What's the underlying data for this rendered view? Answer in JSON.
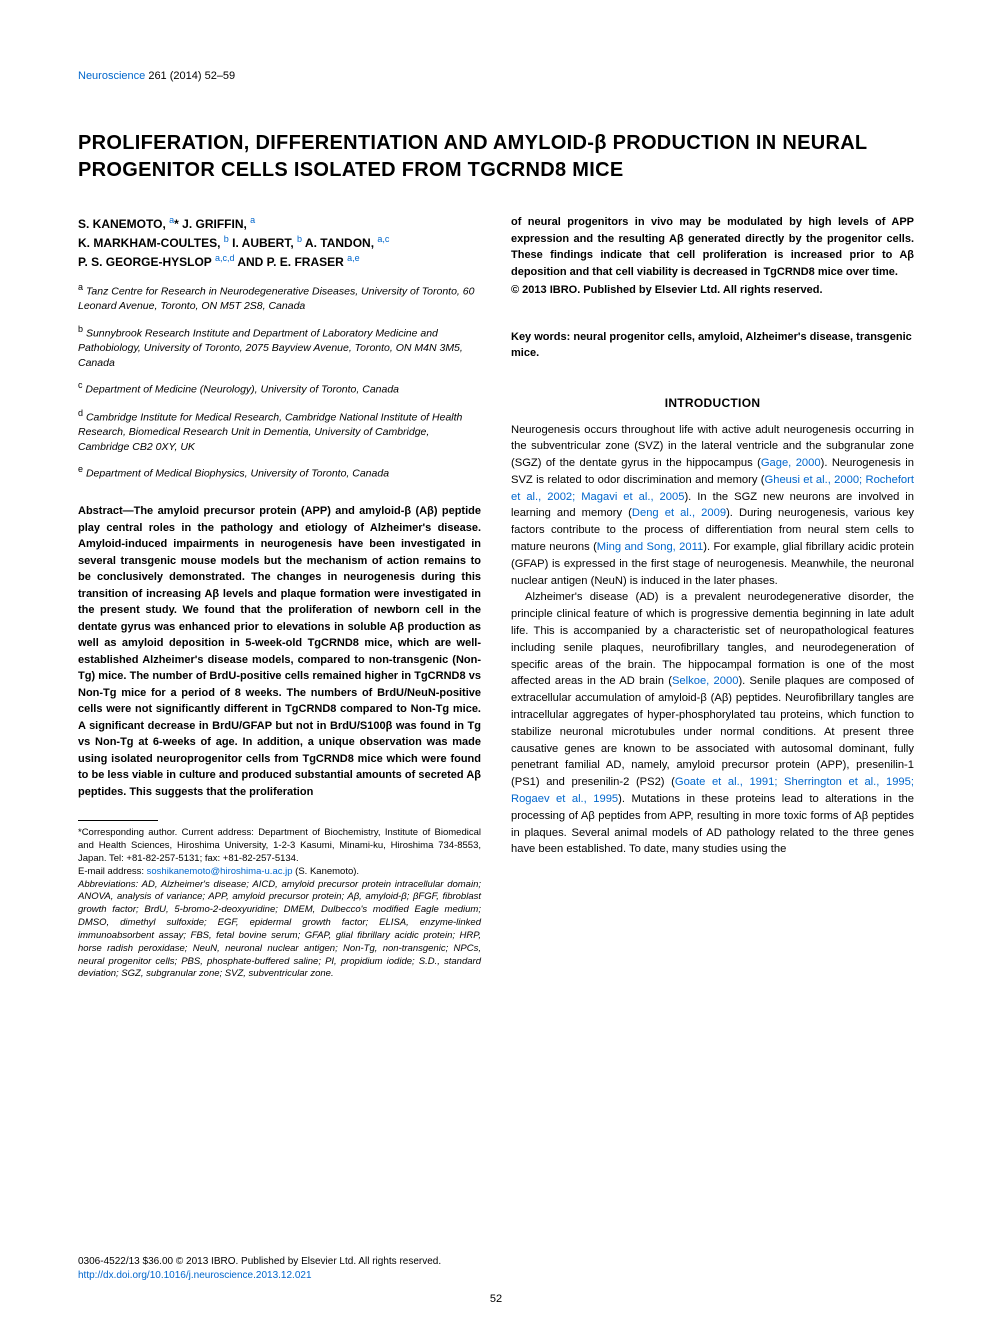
{
  "journal": {
    "name_link": "Neuroscience",
    "issue": " 261 (2014) 52–59"
  },
  "title": "PROLIFERATION, DIFFERENTIATION AND AMYLOID-β PRODUCTION IN NEURAL PROGENITOR CELLS ISOLATED FROM TGCRND8 MICE",
  "authors": {
    "line1_a": "S. KANEMOTO, ",
    "line1_aff1": "a",
    "line1_star": "*",
    "line1_b": " J. GRIFFIN, ",
    "line1_aff2": "a",
    "line2_a": "K. MARKHAM-COULTES, ",
    "line2_aff1": "b",
    "line2_b": " I. AUBERT, ",
    "line2_aff2": "b",
    "line2_c": " A. TANDON, ",
    "line2_aff3": "a,c",
    "line3_a": "P. S. GEORGE-HYSLOP ",
    "line3_aff1": "a,c,d",
    "line3_b": " AND P. E. FRASER ",
    "line3_aff2": "a,e"
  },
  "affiliations": {
    "a": "Tanz Centre for Research in Neurodegenerative Diseases, University of Toronto, 60 Leonard Avenue, Toronto, ON M5T 2S8, Canada",
    "b": "Sunnybrook Research Institute and Department of Laboratory Medicine and Pathobiology, University of Toronto, 2075 Bayview Avenue, Toronto, ON M4N 3M5, Canada",
    "c": "Department of Medicine (Neurology), University of Toronto, Canada",
    "d": "Cambridge Institute for Medical Research, Cambridge National Institute of Health Research, Biomedical Research Unit in Dementia, University of Cambridge, Cambridge CB2 0XY, UK",
    "e": "Department of Medical Biophysics, University of Toronto, Canada"
  },
  "abstract_left": "Abstract—The amyloid precursor protein (APP) and amyloid-β (Aβ) peptide play central roles in the pathology and etiology of Alzheimer's disease. Amyloid-induced impairments in neurogenesis have been investigated in several transgenic mouse models but the mechanism of action remains to be conclusively demonstrated. The changes in neurogenesis during this transition of increasing Aβ levels and plaque formation were investigated in the present study. We found that the proliferation of newborn cell in the dentate gyrus was enhanced prior to elevations in soluble Aβ production as well as amyloid deposition in 5-week-old TgCRND8 mice, which are well-established Alzheimer's disease models, compared to non-transgenic (Non-Tg) mice. The number of BrdU-positive cells remained higher in TgCRND8 vs Non-Tg mice for a period of 8 weeks. The numbers of BrdU/NeuN-positive cells were not significantly different in TgCRND8 compared to Non-Tg mice. A significant decrease in BrdU/GFAP but not in BrdU/S100β was found in Tg vs Non-Tg at 6-weeks of age. In addition, a unique observation was made using isolated neuroprogenitor cells from TgCRND8 mice which were found to be less viable in culture and produced substantial amounts of secreted Aβ peptides. This suggests that the proliferation",
  "abstract_right": "of neural progenitors in vivo may be modulated by high levels of APP expression and the resulting Aβ generated directly by the progenitor cells. These findings indicate that cell proliferation is increased prior to Aβ deposition and that cell viability is decreased in TgCRND8 mice over time.",
  "copyright_line": "© 2013 IBRO. Published by Elsevier Ltd. All rights reserved.",
  "keywords": "Key words: neural progenitor cells, amyloid, Alzheimer's disease, transgenic mice.",
  "intro_heading": "INTRODUCTION",
  "intro_p1_a": "Neurogenesis occurs throughout life with active adult neurogenesis occurring in the subventricular zone (SVZ) in the lateral ventricle and the subgranular zone (SGZ) of the dentate gyrus in the hippocampus (",
  "intro_p1_link1": "Gage, 2000",
  "intro_p1_b": "). Neurogenesis in SVZ is related to odor discrimination and memory (",
  "intro_p1_link2": "Gheusi et al., 2000; Rochefort et al., 2002; Magavi et al., 2005",
  "intro_p1_c": "). In the SGZ new neurons are involved in learning and memory (",
  "intro_p1_link3": "Deng et al., 2009",
  "intro_p1_d": "). During neurogenesis, various key factors contribute to the process of differentiation from neural stem cells to mature neurons (",
  "intro_p1_link4": "Ming and Song, 2011",
  "intro_p1_e": "). For example, glial fibrillary acidic protein (GFAP) is expressed in the first stage of neurogenesis. Meanwhile, the neuronal nuclear antigen (NeuN) is induced in the later phases.",
  "intro_p2_a": "Alzheimer's disease (AD) is a prevalent neurodegenerative disorder, the principle clinical feature of which is progressive dementia beginning in late adult life. This is accompanied by a characteristic set of neuropathological features including senile plaques, neurofibrillary tangles, and neurodegeneration of specific areas of the brain. The hippocampal formation is one of the most affected areas in the AD brain (",
  "intro_p2_link1": "Selkoe, 2000",
  "intro_p2_b": "). Senile plaques are composed of extracellular accumulation of amyloid-β (Aβ) peptides. Neurofibrillary tangles are intracellular aggregates of hyper-phosphorylated tau proteins, which function to stabilize neuronal microtubules under normal conditions. At present three causative genes are known to be associated with autosomal dominant, fully penetrant familial AD, namely, amyloid precursor protein (APP), presenilin-1 (PS1) and presenilin-2 (PS2) (",
  "intro_p2_link2": "Goate et al., 1991; Sherrington et al., 1995; Rogaev et al., 1995",
  "intro_p2_c": "). Mutations in these proteins lead to alterations in the processing of Aβ peptides from APP, resulting in more toxic forms of Aβ peptides in plaques. Several animal models of AD pathology related to the three genes have been established. To date, many studies using the",
  "footnotes": {
    "corr_a": "*Corresponding author. Current address: Department of Biochemistry, Institute of Biomedical and Health Sciences, Hiroshima University, 1-2-3 Kasumi, Minami-ku, Hiroshima 734-8553, Japan. Tel: +81-82-257-5131; fax: +81-82-257-5134.",
    "email_label": "E-mail address: ",
    "email_addr": "soshikanemoto@hiroshima-u.ac.jp",
    "email_after": " (S. Kanemoto).",
    "abbrev": "Abbreviations: AD, Alzheimer's disease; AICD, amyloid precursor protein intracellular domain; ANOVA, analysis of variance; APP, amyloid precursor protein; Aβ, amyloid-β; βFGF, fibroblast growth factor; BrdU, 5-bromo-2-deoxyuridine; DMEM, Dulbecco's modified Eagle medium; DMSO, dimethyl sulfoxide; EGF, epidermal growth factor; ELISA, enzyme-linked immunoabsorbent assay; FBS, fetal bovine serum; GFAP, glial fibrillary acidic protein; HRP, horse radish peroxidase; NeuN, neuronal nuclear antigen; Non-Tg, non-transgenic; NPCs, neural progenitor cells; PBS, phosphate-buffered saline; PI, propidium iodide; S.D., standard deviation; SGZ, subgranular zone; SVZ, subventricular zone."
  },
  "page_footer": {
    "line1": "0306-4522/13 $36.00 © 2013 IBRO. Published by Elsevier Ltd. All rights reserved.",
    "doi": "http://dx.doi.org/10.1016/j.neuroscience.2013.12.021"
  },
  "page_number": "52",
  "colors": {
    "link": "#0066cc",
    "text": "#000000",
    "background": "#ffffff"
  }
}
